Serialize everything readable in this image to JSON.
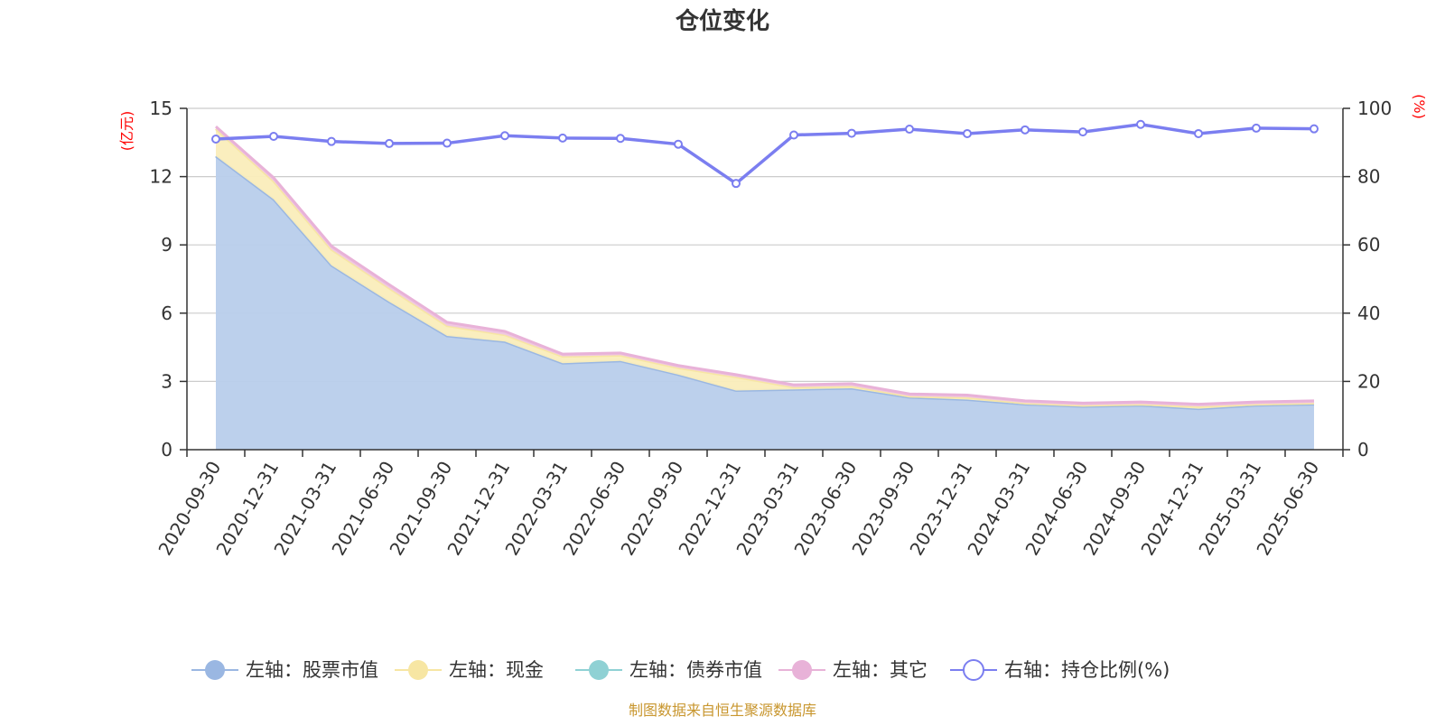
{
  "chart_data": {
    "type": "area",
    "title": "仓位变化",
    "left_axis_unit": "(亿元)",
    "right_axis_unit": "(%)",
    "categories": [
      "2020-09-30",
      "2020-12-31",
      "2021-03-31",
      "2021-06-30",
      "2021-09-30",
      "2021-12-31",
      "2022-03-31",
      "2022-06-30",
      "2022-09-30",
      "2022-12-31",
      "2023-03-31",
      "2023-06-30",
      "2023-09-30",
      "2023-12-31",
      "2024-03-31",
      "2024-06-30",
      "2024-09-30",
      "2024-12-31",
      "2025-03-31",
      "2025-06-30"
    ],
    "left_ylim": [
      0,
      15
    ],
    "left_ticks": [
      0,
      3,
      6,
      9,
      12,
      15
    ],
    "right_ylim": [
      0,
      100
    ],
    "right_ticks": [
      0,
      20,
      40,
      60,
      80,
      100
    ],
    "grid": true,
    "legend_position": "bottom",
    "series": [
      {
        "name": "左轴：股票市值",
        "axis": "left",
        "color": "#9ab7e2",
        "fill": "#b8ceeb",
        "values": [
          12.9,
          11.0,
          8.1,
          6.5,
          5.0,
          4.75,
          3.8,
          3.9,
          3.3,
          2.6,
          2.65,
          2.7,
          2.3,
          2.2,
          2.0,
          1.9,
          1.95,
          1.8,
          1.95,
          2.0
        ]
      },
      {
        "name": "左轴：现金",
        "axis": "left",
        "color": "#f7e6a3",
        "fill": "#faedbb",
        "values": [
          1.2,
          0.8,
          0.7,
          0.6,
          0.45,
          0.3,
          0.3,
          0.25,
          0.3,
          0.6,
          0.1,
          0.1,
          0.05,
          0.1,
          0.05,
          0.05,
          0.05,
          0.1,
          0.05,
          0.05
        ]
      },
      {
        "name": "左轴：债券市值",
        "axis": "left",
        "color": "#8fd1d4",
        "fill": "#a9dcde",
        "values": [
          0,
          0,
          0,
          0,
          0,
          0,
          0,
          0,
          0,
          0,
          0,
          0,
          0,
          0,
          0,
          0,
          0,
          0,
          0,
          0
        ]
      },
      {
        "name": "左轴：其它",
        "axis": "left",
        "color": "#e8b2d8",
        "fill": "#efc6e3",
        "values": [
          0.1,
          0.15,
          0.15,
          0.15,
          0.15,
          0.15,
          0.1,
          0.1,
          0.1,
          0.1,
          0.1,
          0.1,
          0.1,
          0.1,
          0.1,
          0.1,
          0.1,
          0.1,
          0.1,
          0.1
        ]
      },
      {
        "name": "右轴：持仓比例(%)",
        "axis": "right",
        "color": "#7b7ef0",
        "type": "line",
        "values": [
          91.0,
          91.8,
          90.3,
          89.7,
          89.8,
          92.0,
          91.3,
          91.2,
          89.5,
          78.0,
          92.2,
          92.7,
          93.9,
          92.6,
          93.7,
          93.1,
          95.3,
          92.6,
          94.2,
          94.0
        ]
      }
    ]
  },
  "source_note": "制图数据来自恒生聚源数据库"
}
